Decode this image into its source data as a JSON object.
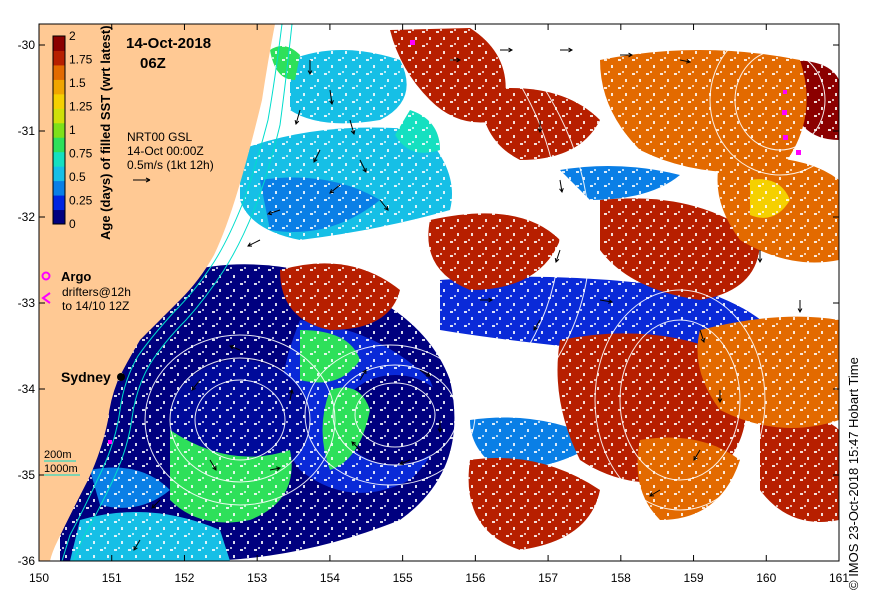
{
  "map": {
    "date": "14-Oct-2018",
    "time": "06Z",
    "colorbar": {
      "label": "Age (days) of filled SST (wrt latest)",
      "ticks": [
        "2",
        "1.75",
        "1.5",
        "1.25",
        "1",
        "0.75",
        "0.5",
        "0.25",
        "0"
      ],
      "colors": [
        "#00007f",
        "#0024e0",
        "#0a7fe6",
        "#16bfe6",
        "#15e0c0",
        "#2ee05a",
        "#7ee01a",
        "#cfe00a",
        "#f5d000",
        "#f0a500",
        "#e36a00",
        "#b71f00",
        "#8b0000"
      ]
    },
    "product": {
      "line1": "NRT00 GSL",
      "line2": "14-Oct 00:00Z",
      "line3": "0.5m/s (1kt 12h)"
    },
    "legend": {
      "argo": "Argo",
      "drifters_line1": "drifters@12h",
      "drifters_line2": "to 14/10 12Z",
      "argo_color": "#ff00ff",
      "drifter_color": "#ff00ff"
    },
    "place": {
      "name": "Sydney"
    },
    "depth_legend": {
      "d200": "200m",
      "d1000": "1000m",
      "color": "#00ddcc"
    },
    "x_ticks": [
      "150",
      "151",
      "152",
      "153",
      "154",
      "155",
      "156",
      "157",
      "158",
      "159",
      "160",
      "161"
    ],
    "y_ticks": [
      "-30",
      "-31",
      "-32",
      "-33",
      "-34",
      "-35",
      "-36"
    ],
    "credit": "© IMOS 23-Oct-2018 15:47 Hobart Time",
    "land_color": "#ffc994"
  }
}
